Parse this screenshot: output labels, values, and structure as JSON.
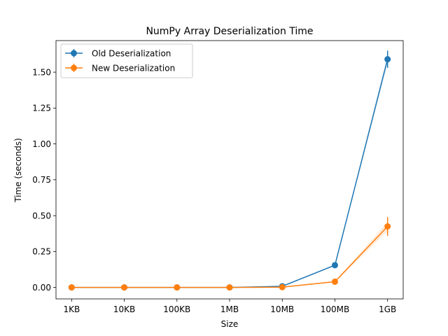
{
  "chart_data": {
    "type": "line",
    "title": "NumPy Array Deserialization Time",
    "xlabel": "Size",
    "ylabel": "Time (seconds)",
    "categories": [
      "1KB",
      "10KB",
      "100KB",
      "1MB",
      "10MB",
      "100MB",
      "1GB"
    ],
    "ylim": [
      -0.08,
      1.72
    ],
    "yticks": [
      0.0,
      0.25,
      0.5,
      0.75,
      1.0,
      1.25,
      1.5
    ],
    "ytick_labels": [
      "0.00",
      "0.25",
      "0.50",
      "0.75",
      "1.00",
      "1.25",
      "1.50"
    ],
    "legend_position": "upper-left",
    "grid": false,
    "series": [
      {
        "name": "Old Deserialization",
        "color": "#1f77b4",
        "values": [
          0.0,
          0.0,
          0.0,
          0.0,
          0.008,
          0.155,
          1.59
        ],
        "errors": [
          0.0,
          0.0,
          0.0,
          0.0,
          0.002,
          0.01,
          0.06
        ]
      },
      {
        "name": "New Deserialization",
        "color": "#ff7f0e",
        "values": [
          0.0,
          0.0,
          0.0,
          0.0,
          0.002,
          0.04,
          0.425
        ],
        "errors": [
          0.0,
          0.0,
          0.0,
          0.0,
          0.001,
          0.006,
          0.065
        ]
      }
    ]
  }
}
